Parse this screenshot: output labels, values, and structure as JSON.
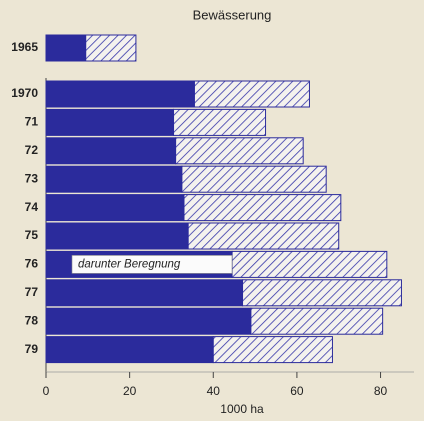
{
  "chart_data": {
    "type": "stacked-bar-horizontal",
    "title": "Bewässerung",
    "categories": [
      "1965",
      "1970",
      "71",
      "72",
      "73",
      "74",
      "75",
      "76",
      "77",
      "78",
      "79"
    ],
    "series": [
      {
        "name": "darunter Beregnung",
        "color": "#2b2b9c",
        "values": [
          9.5,
          35.5,
          30.5,
          31,
          32.5,
          33,
          34,
          44.5,
          47,
          49,
          40
        ]
      },
      {
        "color": "#3535a8",
        "pattern": "hatched",
        "values": [
          12,
          27.5,
          22,
          30.5,
          34.5,
          37.5,
          36,
          37,
          38,
          31.5,
          28.5
        ]
      }
    ],
    "xlabel": "1000 ha",
    "xlim": [
      0,
      88
    ],
    "xticks": [
      0,
      20,
      40,
      60,
      80
    ]
  }
}
